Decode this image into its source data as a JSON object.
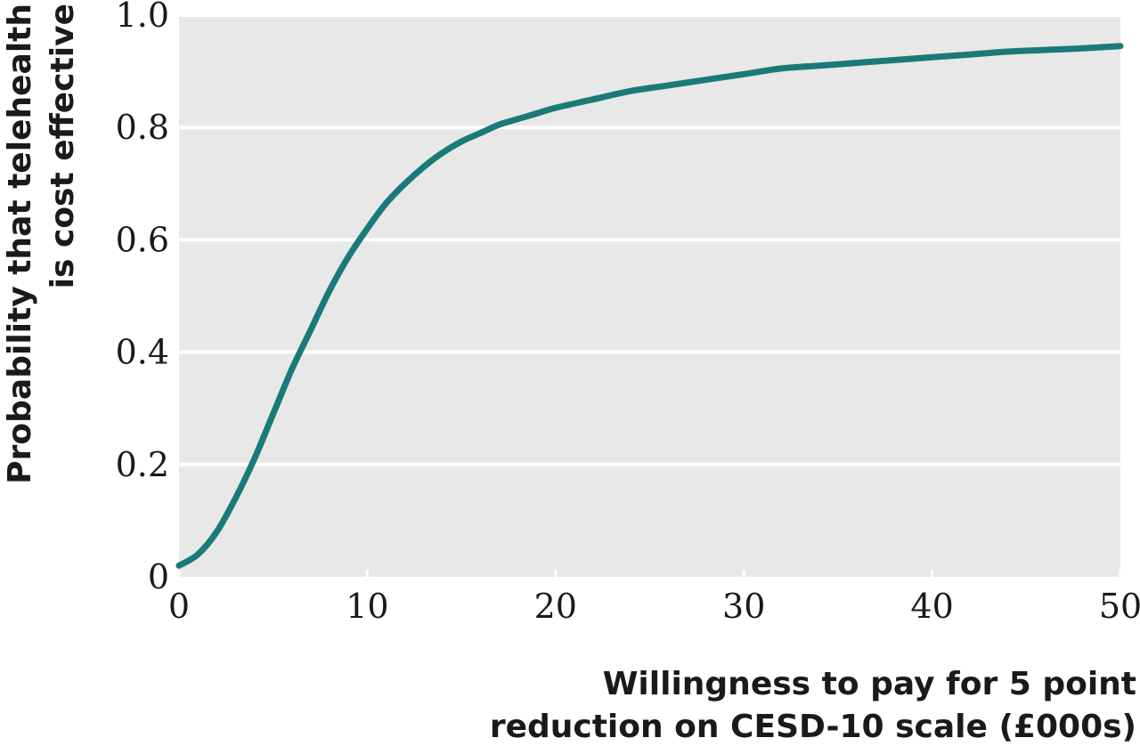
{
  "chart_data": {
    "type": "line",
    "title": "",
    "xlabel": [
      "Willingness to pay for 5 point",
      "reduction on CESD-10 scale (£000s)"
    ],
    "ylabel": [
      "Probability that telehealth",
      "is cost effective"
    ],
    "xlim": [
      0,
      50
    ],
    "ylim": [
      0,
      1.0
    ],
    "x_ticks": [
      0,
      10,
      20,
      30,
      40,
      50
    ],
    "x_tick_labels": [
      "0",
      "10",
      "20",
      "30",
      "40",
      "50"
    ],
    "y_ticks": [
      0,
      0.2,
      0.4,
      0.6,
      0.8,
      1.0
    ],
    "y_tick_labels": [
      "0",
      "0.2",
      "0.4",
      "0.6",
      "0.8",
      "1.0"
    ],
    "grid": "horizontal",
    "legend": "none",
    "colors": {
      "line": "#1a7a78",
      "plot_background": "#e8e8e8",
      "grid": "#ffffff"
    },
    "series": [
      {
        "x": [
          0,
          1,
          2,
          3,
          4,
          5,
          6,
          7,
          8,
          9,
          10,
          11,
          12,
          13,
          14,
          15,
          16,
          17,
          18,
          19,
          20,
          22,
          24,
          26,
          28,
          30,
          32,
          34,
          36,
          38,
          40,
          42,
          44,
          46,
          48,
          50
        ],
        "y": [
          0.02,
          0.04,
          0.08,
          0.14,
          0.21,
          0.29,
          0.37,
          0.44,
          0.51,
          0.57,
          0.62,
          0.665,
          0.7,
          0.73,
          0.755,
          0.775,
          0.79,
          0.805,
          0.815,
          0.825,
          0.835,
          0.85,
          0.865,
          0.875,
          0.885,
          0.895,
          0.905,
          0.91,
          0.915,
          0.92,
          0.925,
          0.93,
          0.935,
          0.938,
          0.941,
          0.945
        ]
      }
    ]
  }
}
